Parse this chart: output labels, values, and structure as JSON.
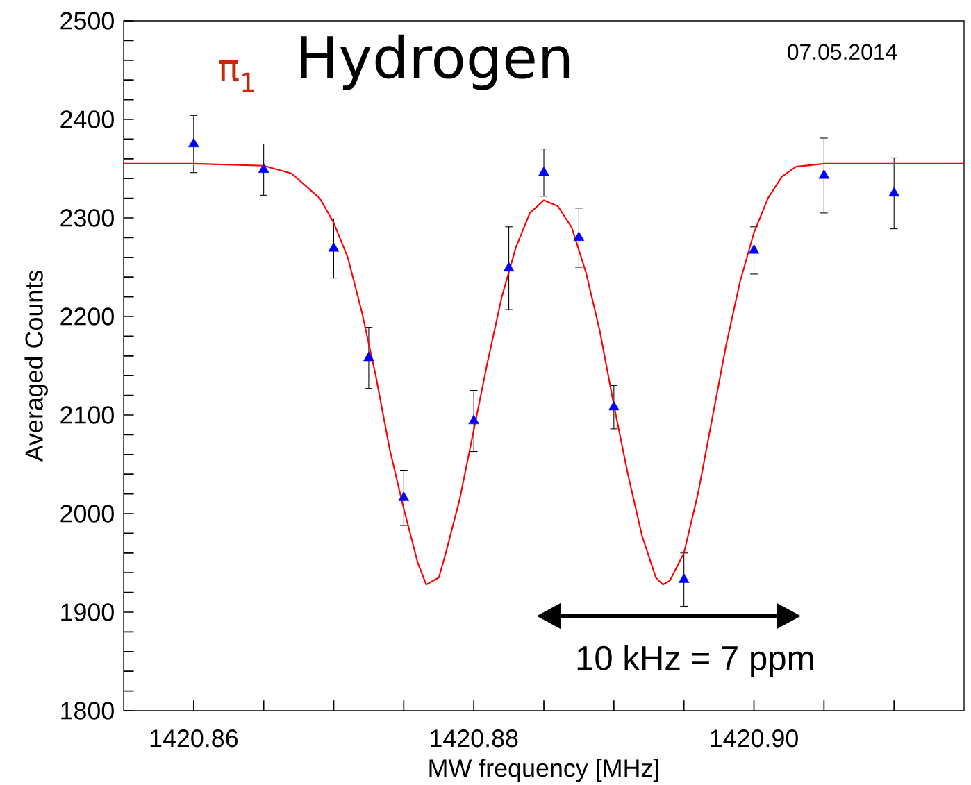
{
  "chart_data": {
    "type": "scatter",
    "title": "Hydrogen",
    "xlabel": "MW frequency [MHz]",
    "ylabel": "Averaged Counts",
    "annotations": [
      "π$_{1}$",
      "07.05.2014",
      "10 kHz = 7 ppm"
    ],
    "xlim": [
      1420.855,
      1420.915
    ],
    "xticks": [
      1420.86,
      {
        "value": 1420.865,
        "label": null
      },
      {
        "value": 1420.87,
        "label": null
      },
      {
        "value": 1420.875,
        "label": null
      },
      1420.88,
      {
        "value": 1420.885,
        "label": null
      },
      {
        "value": 1420.89,
        "label": null
      },
      {
        "value": 1420.895,
        "label": null
      },
      {
        "value": 1420.9,
        "label": "1420.90"
      },
      {
        "value": 1420.905,
        "label": null
      },
      {
        "value": 1420.91,
        "label": null
      }
    ],
    "ylim": [
      1800,
      2500
    ],
    "yticks": [
      1800,
      {
        "value": 1820,
        "label": null
      },
      {
        "value": 1840,
        "label": null
      },
      {
        "value": 1860,
        "label": null
      },
      {
        "value": 1880,
        "label": null
      },
      1900,
      {
        "value": 1920,
        "label": null
      },
      {
        "value": 1940,
        "label": null
      },
      {
        "value": 1960,
        "label": null
      },
      {
        "value": 1980,
        "label": null
      },
      2000,
      {
        "value": 2020,
        "label": null
      },
      {
        "value": 2040,
        "label": null
      },
      {
        "value": 2060,
        "label": null
      },
      {
        "value": 2080,
        "label": null
      },
      2100,
      {
        "value": 2120,
        "label": null
      },
      {
        "value": 2140,
        "label": null
      },
      {
        "value": 2160,
        "label": null
      },
      {
        "value": 2180,
        "label": null
      },
      2200,
      {
        "value": 2220,
        "label": null
      },
      {
        "value": 2240,
        "label": null
      },
      {
        "value": 2260,
        "label": null
      },
      {
        "value": 2280,
        "label": null
      },
      2300,
      {
        "value": 2320,
        "label": null
      },
      {
        "value": 2340,
        "label": null
      },
      {
        "value": 2360,
        "label": null
      },
      {
        "value": 2380,
        "label": null
      },
      2400,
      {
        "value": 2420,
        "label": null
      },
      {
        "value": 2440,
        "label": null
      },
      {
        "value": 2460,
        "label": null
      },
      {
        "value": 2480,
        "label": null
      },
      2500
    ],
    "grid": false,
    "series": [
      {
        "marker": "triangle",
        "color": "#0000ff",
        "x": [
          1420.86,
          1420.865,
          1420.87,
          1420.8725,
          1420.875,
          1420.88,
          1420.8825,
          1420.885,
          1420.8875,
          1420.89,
          1420.895,
          1420.9,
          1420.905,
          1420.91
        ],
        "values": [
          2375,
          2349,
          2269,
          2158,
          2016,
          2094,
          2249,
          2346,
          2280,
          2108,
          1933,
          2267,
          2343,
          2325
        ],
        "errors": [
          29,
          26,
          30,
          31,
          28,
          31,
          42,
          24,
          30,
          22,
          27,
          24,
          38,
          36
        ]
      },
      {
        "type": "line",
        "marker": "none",
        "line_style": "solid",
        "color": "#ff0000",
        "x": [
          1420.855,
          1420.86,
          1420.865,
          1420.867,
          1420.869,
          1420.87,
          1420.871,
          1420.872,
          1420.873,
          1420.874,
          1420.875,
          1420.876,
          1420.8766,
          1420.8775,
          1420.878,
          1420.879,
          1420.88,
          1420.881,
          1420.882,
          1420.883,
          1420.884,
          1420.885,
          1420.886,
          1420.887,
          1420.888,
          1420.889,
          1420.89,
          1420.891,
          1420.892,
          1420.893,
          1420.8935,
          1420.894,
          1420.895,
          1420.896,
          1420.897,
          1420.898,
          1420.899,
          1420.9,
          1420.901,
          1420.902,
          1420.903,
          1420.905,
          1420.915
        ],
        "values": [
          2355,
          2355,
          2353,
          2345,
          2320,
          2295,
          2260,
          2205,
          2140,
          2065,
          2005,
          1950,
          1928,
          1935,
          1960,
          2015,
          2085,
          2155,
          2220,
          2270,
          2305,
          2318,
          2312,
          2290,
          2245,
          2185,
          2110,
          2040,
          1978,
          1935,
          1928,
          1932,
          1960,
          2020,
          2095,
          2170,
          2235,
          2285,
          2320,
          2342,
          2352,
          2355,
          2355
        ]
      }
    ]
  }
}
